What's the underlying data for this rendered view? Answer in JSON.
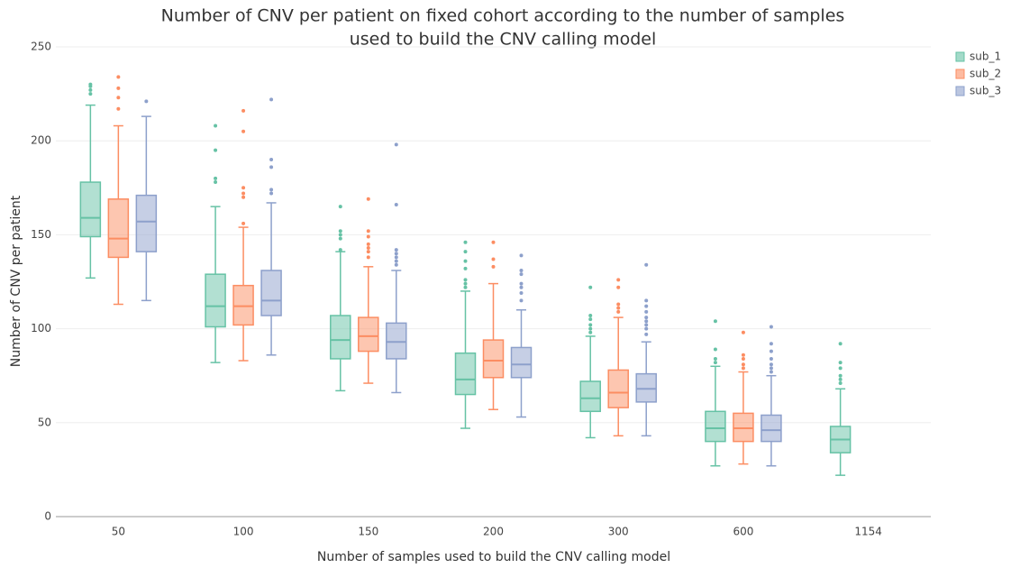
{
  "chart_data": {
    "type": "box",
    "title": [
      "Number of CNV per patient on fixed cohort according to the number of samples",
      "used to build the CNV calling model"
    ],
    "x_label": "Number of samples used to build the CNV calling model",
    "y_label": "Number of CNV per patient",
    "categories": [
      "50",
      "100",
      "150",
      "200",
      "300",
      "600",
      "1154"
    ],
    "ylim": [
      0,
      250
    ],
    "yticks": [
      0,
      50,
      100,
      150,
      200,
      250
    ],
    "grid": true,
    "legend": "top-right",
    "series": [
      {
        "name": "sub_1",
        "color": "#66c2a5",
        "boxes": [
          {
            "min": 127,
            "q1": 149,
            "median": 159,
            "q3": 178,
            "max": 219,
            "outliers": [
              225,
              227,
              229,
              230
            ]
          },
          {
            "min": 82,
            "q1": 101,
            "median": 112,
            "q3": 129,
            "max": 165,
            "outliers": [
              178,
              180,
              195,
              208
            ]
          },
          {
            "min": 67,
            "q1": 84,
            "median": 94,
            "q3": 107,
            "max": 141,
            "outliers": [
              142,
              148,
              150,
              152,
              165
            ]
          },
          {
            "min": 47,
            "q1": 65,
            "median": 73,
            "q3": 87,
            "max": 120,
            "outliers": [
              122,
              124,
              126,
              132,
              136,
              141,
              146
            ]
          },
          {
            "min": 42,
            "q1": 56,
            "median": 63,
            "q3": 72,
            "max": 96,
            "outliers": [
              98,
              100,
              102,
              105,
              107,
              122
            ]
          },
          {
            "min": 27,
            "q1": 40,
            "median": 47,
            "q3": 56,
            "max": 80,
            "outliers": [
              82,
              84,
              89,
              104
            ]
          },
          {
            "min": 22,
            "q1": 34,
            "median": 41,
            "q3": 48,
            "max": 68,
            "outliers": [
              71,
              73,
              75,
              79,
              82,
              92
            ]
          }
        ]
      },
      {
        "name": "sub_2",
        "color": "#fc8d62",
        "boxes": [
          {
            "min": 113,
            "q1": 138,
            "median": 148,
            "q3": 169,
            "max": 208,
            "outliers": [
              217,
              223,
              228,
              234
            ]
          },
          {
            "min": 83,
            "q1": 102,
            "median": 112,
            "q3": 123,
            "max": 154,
            "outliers": [
              156,
              170,
              172,
              175,
              205,
              216
            ]
          },
          {
            "min": 71,
            "q1": 88,
            "median": 96,
            "q3": 106,
            "max": 133,
            "outliers": [
              138,
              141,
              143,
              145,
              149,
              152,
              169
            ]
          },
          {
            "min": 57,
            "q1": 74,
            "median": 83,
            "q3": 94,
            "max": 124,
            "outliers": [
              133,
              137,
              146
            ]
          },
          {
            "min": 43,
            "q1": 58,
            "median": 66,
            "q3": 78,
            "max": 106,
            "outliers": [
              109,
              111,
              113,
              122,
              126
            ]
          },
          {
            "min": 28,
            "q1": 40,
            "median": 47,
            "q3": 55,
            "max": 77,
            "outliers": [
              79,
              81,
              84,
              86,
              98
            ]
          },
          null
        ]
      },
      {
        "name": "sub_3",
        "color": "#8da0cb",
        "boxes": [
          {
            "min": 115,
            "q1": 141,
            "median": 157,
            "q3": 171,
            "max": 213,
            "outliers": [
              221
            ]
          },
          {
            "min": 86,
            "q1": 107,
            "median": 115,
            "q3": 131,
            "max": 167,
            "outliers": [
              172,
              174,
              186,
              190,
              222
            ]
          },
          {
            "min": 66,
            "q1": 84,
            "median": 93,
            "q3": 103,
            "max": 131,
            "outliers": [
              134,
              136,
              138,
              140,
              142,
              166,
              198
            ]
          },
          {
            "min": 53,
            "q1": 74,
            "median": 81,
            "q3": 90,
            "max": 110,
            "outliers": [
              115,
              119,
              122,
              124,
              129,
              131,
              139
            ]
          },
          {
            "min": 43,
            "q1": 61,
            "median": 68,
            "q3": 76,
            "max": 93,
            "outliers": [
              97,
              100,
              102,
              104,
              106,
              109,
              112,
              115,
              134
            ]
          },
          {
            "min": 27,
            "q1": 40,
            "median": 46,
            "q3": 54,
            "max": 75,
            "outliers": [
              77,
              79,
              81,
              84,
              88,
              92,
              101
            ]
          },
          null
        ]
      }
    ]
  }
}
